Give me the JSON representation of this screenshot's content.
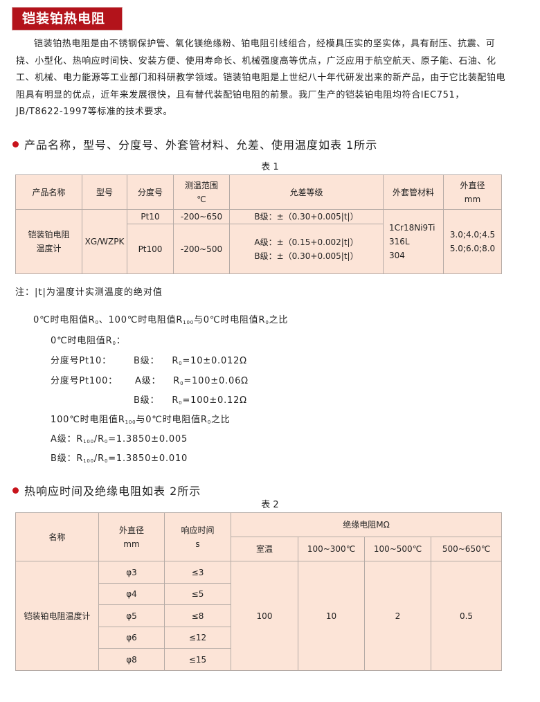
{
  "title": "铠装铂热电阻",
  "intro": "铠装铂热电阻是由不锈钢保护管、氧化镁绝缘粉、铂电阻引线组合，经模具压实的坚实体，具有耐压、抗震、可挠、小型化、热响应时间快、安装方便、使用寿命长、机械强度高等优点，广泛应用于航空航天、原子能、石油、化工、机械、电力能源等工业部门和科研教学领域。铠装铂电阻是上世纪八十年代研发出来的新产品，由于它比装配铂电阻具有明显的优点，近年来发展很快，且有替代装配铂电阻的前景。我厂生产的铠装铂电阻均符合IEC751，JB/T8622-1997等标准的技术要求。",
  "section1": "产品名称，型号、分度号、外套管材料、允差、使用温度如表 1所示",
  "table1": {
    "caption": "表 1",
    "headers": [
      "产品名称",
      "型号",
      "分度号",
      "测温范围",
      "℃",
      "允差等级",
      "外套管材料",
      "外直径",
      "mm"
    ],
    "product": [
      "铠装铂电阻",
      "温度计"
    ],
    "model": "XG/WZPK",
    "rows": [
      {
        "index": "Pt10",
        "range": "-200~650",
        "tolerance": [
          "B级：±（0.30+0.005|t|）"
        ]
      },
      {
        "index": "Pt100",
        "range": "-200~500",
        "tolerance": [
          "A级：±（0.15+0.002|t|）",
          "B级：±（0.30+0.005|t|）"
        ]
      }
    ],
    "materials": [
      "1Cr18Ni9Ti",
      "316L",
      "304"
    ],
    "diameters": [
      "3.0;4.0;4.5",
      "5.0;6.0;8.0"
    ]
  },
  "note": "注：|t|为温度计实测温度的绝对值",
  "resistance": {
    "heading": [
      "0℃时电阻值R",
      "0",
      "、100℃时电阻值R",
      "100",
      "与0℃时电阻值R",
      "0",
      "之比"
    ],
    "r0_title": [
      "0℃时电阻值R",
      "0",
      "："
    ],
    "pt10_label": "分度号Pt10：",
    "pt10_b": [
      "B级：",
      "R",
      "0",
      "=10±0.012Ω"
    ],
    "pt100_label": "分度号Pt100：",
    "pt100_a": [
      "A级：",
      "R",
      "0",
      "=100±0.06Ω"
    ],
    "pt100_b": [
      "B级：",
      "R",
      "0",
      "=100±0.12Ω"
    ],
    "ratio_title": [
      "100℃时电阻值R",
      "100",
      "与0℃时电阻值R",
      "0",
      "之比"
    ],
    "ratio_a": [
      "A级：R",
      "100",
      "/R",
      "0",
      "=1.3850±0.005"
    ],
    "ratio_b": [
      "B级：R",
      "100",
      "/R",
      "0",
      "=1.3850±0.010"
    ]
  },
  "section2": "热响应时间及绝缘电阻如表 2所示",
  "table2": {
    "caption": "表 2",
    "headers": [
      "名称",
      "外直径",
      "mm",
      "响应时间",
      "s",
      "绝缘电阻MΩ"
    ],
    "subheaders": [
      "室温",
      "100~300℃",
      "100~500℃",
      "500~650℃"
    ],
    "name": "铠装铂电阻温度计",
    "rows": [
      {
        "diameter": "φ3",
        "time": "≤3"
      },
      {
        "diameter": "φ4",
        "time": "≤5"
      },
      {
        "diameter": "φ5",
        "time": "≤8"
      },
      {
        "diameter": "φ6",
        "time": "≤12"
      },
      {
        "diameter": "φ8",
        "time": "≤15"
      }
    ],
    "insulation": [
      "100",
      "10",
      "2",
      "0.5"
    ]
  },
  "colors": {
    "accent": "#b3131b",
    "table_fill": "#fce4d7",
    "bullet": "#c8141c"
  }
}
